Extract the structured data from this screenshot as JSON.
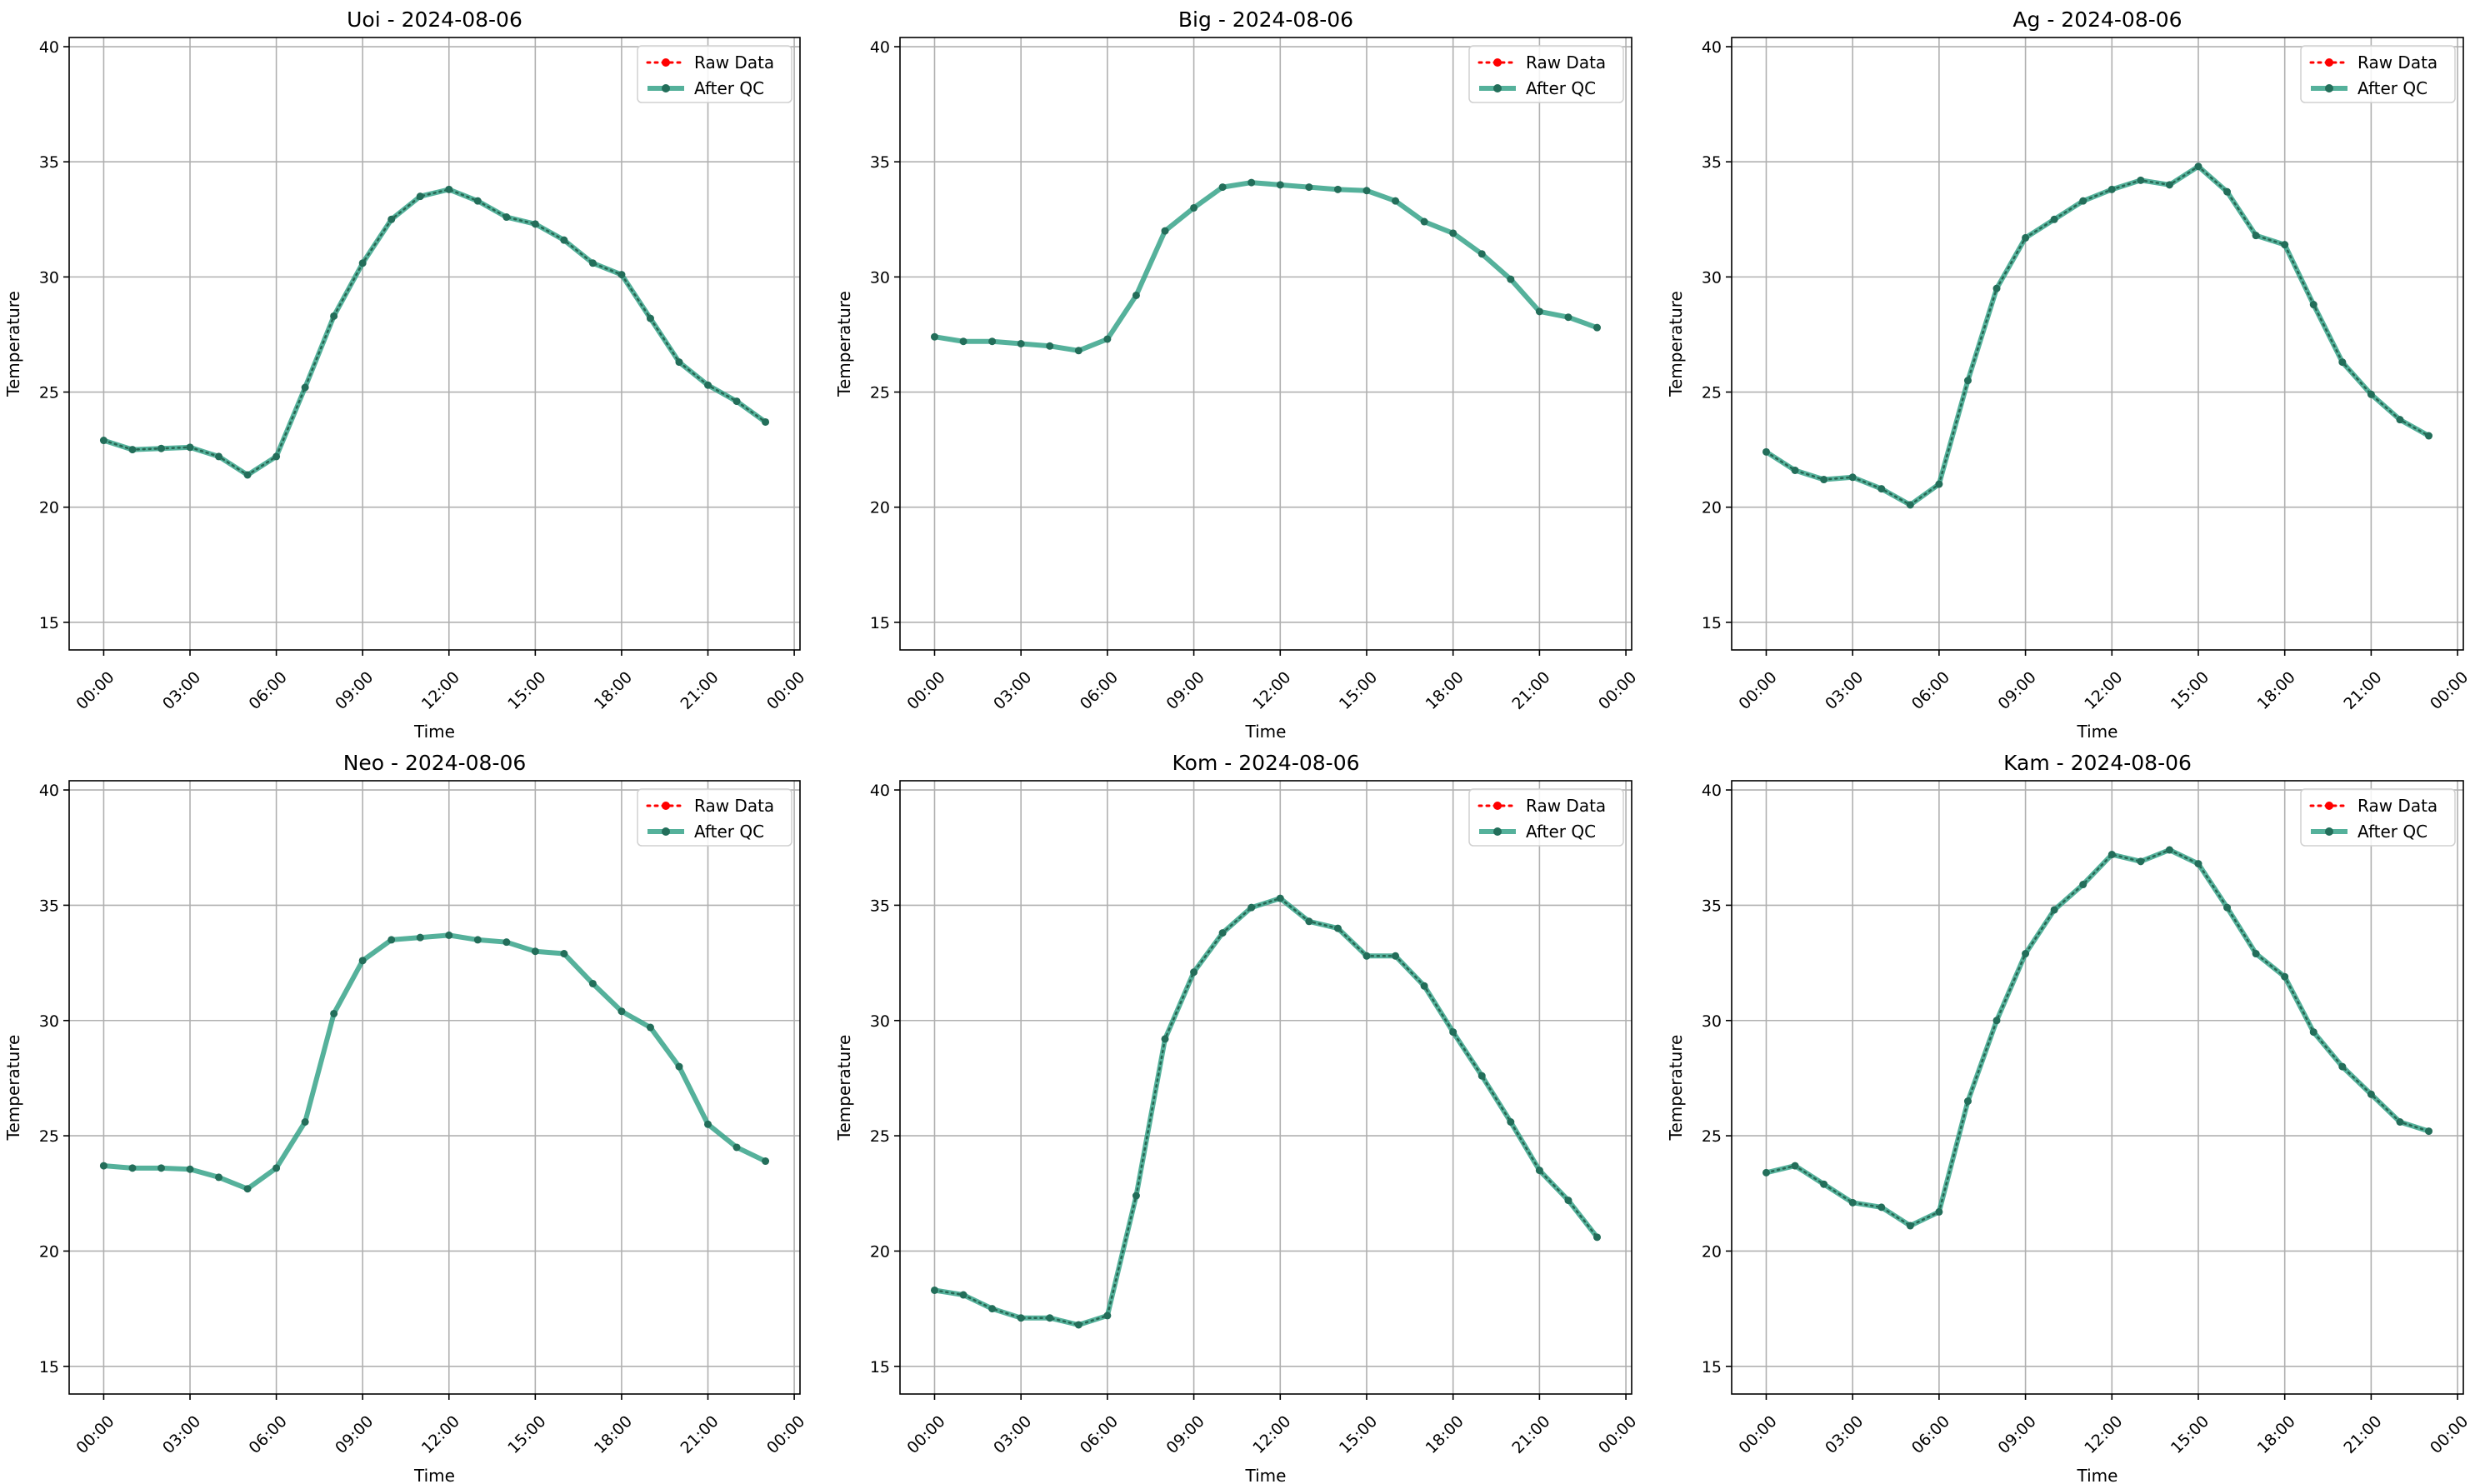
{
  "chart_data": [
    {
      "type": "line",
      "title": "Uoi - 2024-08-06",
      "xlabel": "Time",
      "ylabel": "Temperature",
      "x_ticks": [
        "00:00",
        "03:00",
        "06:00",
        "09:00",
        "12:00",
        "15:00",
        "18:00",
        "21:00",
        "00:00"
      ],
      "y_ticks": [
        "15",
        "20",
        "25",
        "30",
        "35",
        "40"
      ],
      "xlim": [
        -1.2,
        24.2
      ],
      "ylim": [
        13.8,
        40.4
      ],
      "grid": true,
      "legend_position": "top-right",
      "x_hours": [
        0,
        1,
        2,
        3,
        4,
        5,
        6,
        7,
        8,
        9,
        10,
        11,
        12,
        13,
        14,
        15,
        16,
        17,
        18,
        19,
        20,
        21,
        22,
        23
      ],
      "series": [
        {
          "name": "Raw Data",
          "color": "#ff0000",
          "values": [
            22.9,
            22.5,
            22.55,
            22.6,
            22.2,
            21.4,
            22.2,
            25.2,
            28.3,
            30.6,
            32.5,
            33.5,
            33.8,
            33.3,
            32.6,
            32.3,
            31.6,
            30.6,
            30.1,
            28.2,
            26.3,
            25.3,
            24.6,
            23.7
          ]
        },
        {
          "name": "After QC",
          "color": "#2a9d82",
          "values": [
            22.9,
            22.5,
            22.55,
            22.6,
            22.2,
            21.4,
            22.2,
            25.2,
            28.3,
            30.6,
            32.5,
            33.5,
            33.8,
            33.3,
            32.6,
            32.3,
            31.6,
            30.6,
            30.1,
            28.2,
            26.3,
            25.3,
            24.6,
            23.7
          ]
        }
      ]
    },
    {
      "type": "line",
      "title": "Big - 2024-08-06",
      "xlabel": "Time",
      "ylabel": "Temperature",
      "x_ticks": [
        "00:00",
        "03:00",
        "06:00",
        "09:00",
        "12:00",
        "15:00",
        "18:00",
        "21:00",
        "00:00"
      ],
      "y_ticks": [
        "15",
        "20",
        "25",
        "30",
        "35",
        "40"
      ],
      "xlim": [
        -1.2,
        24.2
      ],
      "ylim": [
        13.8,
        40.4
      ],
      "grid": true,
      "legend_position": "top-right",
      "x_hours": [
        0,
        1,
        2,
        3,
        4,
        5,
        6,
        7,
        8,
        9,
        10,
        11,
        12,
        13,
        14,
        15,
        16,
        17,
        18,
        19,
        20,
        21,
        22,
        23
      ],
      "series": [
        {
          "name": "Raw Data",
          "color": "#ff0000",
          "values": []
        },
        {
          "name": "After QC",
          "color": "#2a9d82",
          "values": [
            27.4,
            27.2,
            27.2,
            27.1,
            27.0,
            26.8,
            27.3,
            29.2,
            32.0,
            33.0,
            33.9,
            34.1,
            34.0,
            33.9,
            33.8,
            33.75,
            33.3,
            32.4,
            31.9,
            31.0,
            29.9,
            28.5,
            28.25,
            27.8
          ]
        }
      ]
    },
    {
      "type": "line",
      "title": "Ag - 2024-08-06",
      "xlabel": "Time",
      "ylabel": "Temperature",
      "x_ticks": [
        "00:00",
        "03:00",
        "06:00",
        "09:00",
        "12:00",
        "15:00",
        "18:00",
        "21:00",
        "00:00"
      ],
      "y_ticks": [
        "15",
        "20",
        "25",
        "30",
        "35",
        "40"
      ],
      "xlim": [
        -1.2,
        24.2
      ],
      "ylim": [
        13.8,
        40.4
      ],
      "grid": true,
      "legend_position": "top-right",
      "x_hours": [
        0,
        1,
        2,
        3,
        4,
        5,
        6,
        7,
        8,
        9,
        10,
        11,
        12,
        13,
        14,
        15,
        16,
        17,
        18,
        19,
        20,
        21,
        22,
        23
      ],
      "series": [
        {
          "name": "Raw Data",
          "color": "#ff0000",
          "values": [
            22.4,
            21.6,
            21.2,
            21.3,
            20.8,
            20.1,
            21.0,
            25.5,
            29.5,
            31.7,
            32.5,
            33.3,
            33.8,
            34.2,
            34.0,
            34.8,
            33.7,
            31.8,
            31.4,
            28.8,
            26.3,
            24.9,
            23.8,
            23.1
          ]
        },
        {
          "name": "After QC",
          "color": "#2a9d82",
          "values": [
            22.4,
            21.6,
            21.2,
            21.3,
            20.8,
            20.1,
            21.0,
            25.5,
            29.5,
            31.7,
            32.5,
            33.3,
            33.8,
            34.2,
            34.0,
            34.8,
            33.7,
            31.8,
            31.4,
            28.8,
            26.3,
            24.9,
            23.8,
            23.1
          ]
        }
      ]
    },
    {
      "type": "line",
      "title": "Neo - 2024-08-06",
      "xlabel": "Time",
      "ylabel": "Temperature",
      "x_ticks": [
        "00:00",
        "03:00",
        "06:00",
        "09:00",
        "12:00",
        "15:00",
        "18:00",
        "21:00",
        "00:00"
      ],
      "y_ticks": [
        "15",
        "20",
        "25",
        "30",
        "35",
        "40"
      ],
      "xlim": [
        -1.2,
        24.2
      ],
      "ylim": [
        13.8,
        40.4
      ],
      "grid": true,
      "legend_position": "top-right",
      "x_hours": [
        0,
        1,
        2,
        3,
        4,
        5,
        6,
        7,
        8,
        9,
        10,
        11,
        12,
        13,
        14,
        15,
        16,
        17,
        18,
        19,
        20,
        21,
        22,
        23
      ],
      "series": [
        {
          "name": "Raw Data",
          "color": "#ff0000",
          "values": []
        },
        {
          "name": "After QC",
          "color": "#2a9d82",
          "values": [
            23.7,
            23.6,
            23.6,
            23.55,
            23.2,
            22.7,
            23.6,
            25.6,
            30.3,
            32.6,
            33.5,
            33.6,
            33.7,
            33.5,
            33.4,
            33.0,
            32.9,
            31.6,
            30.4,
            29.7,
            28.0,
            25.5,
            24.5,
            23.9
          ]
        }
      ]
    },
    {
      "type": "line",
      "title": "Kom - 2024-08-06",
      "xlabel": "Time",
      "ylabel": "Temperature",
      "x_ticks": [
        "00:00",
        "03:00",
        "06:00",
        "09:00",
        "12:00",
        "15:00",
        "18:00",
        "21:00",
        "00:00"
      ],
      "y_ticks": [
        "15",
        "20",
        "25",
        "30",
        "35",
        "40"
      ],
      "xlim": [
        -1.2,
        24.2
      ],
      "ylim": [
        13.8,
        40.4
      ],
      "grid": true,
      "legend_position": "top-right",
      "x_hours": [
        0,
        1,
        2,
        3,
        4,
        5,
        6,
        7,
        8,
        9,
        10,
        11,
        12,
        13,
        14,
        15,
        16,
        17,
        18,
        19,
        20,
        21,
        22,
        23
      ],
      "series": [
        {
          "name": "Raw Data",
          "color": "#ff0000",
          "values": [
            18.3,
            18.1,
            17.5,
            17.1,
            17.1,
            16.8,
            17.2,
            22.4,
            29.2,
            32.1,
            33.8,
            34.9,
            35.3,
            34.3,
            34.0,
            32.8,
            32.8,
            31.5,
            29.5,
            27.6,
            25.6,
            23.5,
            22.2,
            20.6
          ]
        },
        {
          "name": "After QC",
          "color": "#2a9d82",
          "values": [
            18.3,
            18.1,
            17.5,
            17.1,
            17.1,
            16.8,
            17.2,
            22.4,
            29.2,
            32.1,
            33.8,
            34.9,
            35.3,
            34.3,
            34.0,
            32.8,
            32.8,
            31.5,
            29.5,
            27.6,
            25.6,
            23.5,
            22.2,
            20.6
          ]
        }
      ]
    },
    {
      "type": "line",
      "title": "Kam - 2024-08-06",
      "xlabel": "Time",
      "ylabel": "Temperature",
      "x_ticks": [
        "00:00",
        "03:00",
        "06:00",
        "09:00",
        "12:00",
        "15:00",
        "18:00",
        "21:00",
        "00:00"
      ],
      "y_ticks": [
        "15",
        "20",
        "25",
        "30",
        "35",
        "40"
      ],
      "xlim": [
        -1.2,
        24.2
      ],
      "ylim": [
        13.8,
        40.4
      ],
      "grid": true,
      "legend_position": "top-right",
      "x_hours": [
        0,
        1,
        2,
        3,
        4,
        5,
        6,
        7,
        8,
        9,
        10,
        11,
        12,
        13,
        14,
        15,
        16,
        17,
        18,
        19,
        20,
        21,
        22,
        23
      ],
      "series": [
        {
          "name": "Raw Data",
          "color": "#ff0000",
          "values": [
            23.4,
            23.7,
            22.9,
            22.1,
            21.9,
            21.1,
            21.7,
            26.5,
            30.0,
            32.9,
            34.8,
            35.9,
            37.2,
            36.9,
            37.4,
            36.8,
            34.9,
            32.9,
            31.9,
            29.5,
            28.0,
            26.8,
            25.6,
            25.2
          ]
        },
        {
          "name": "After QC",
          "color": "#2a9d82",
          "values": [
            23.4,
            23.7,
            22.9,
            22.1,
            21.9,
            21.1,
            21.7,
            26.5,
            30.0,
            32.9,
            34.8,
            35.9,
            37.2,
            36.9,
            37.4,
            36.8,
            34.9,
            32.9,
            31.9,
            29.5,
            28.0,
            26.8,
            25.6,
            25.2
          ]
        }
      ]
    }
  ]
}
